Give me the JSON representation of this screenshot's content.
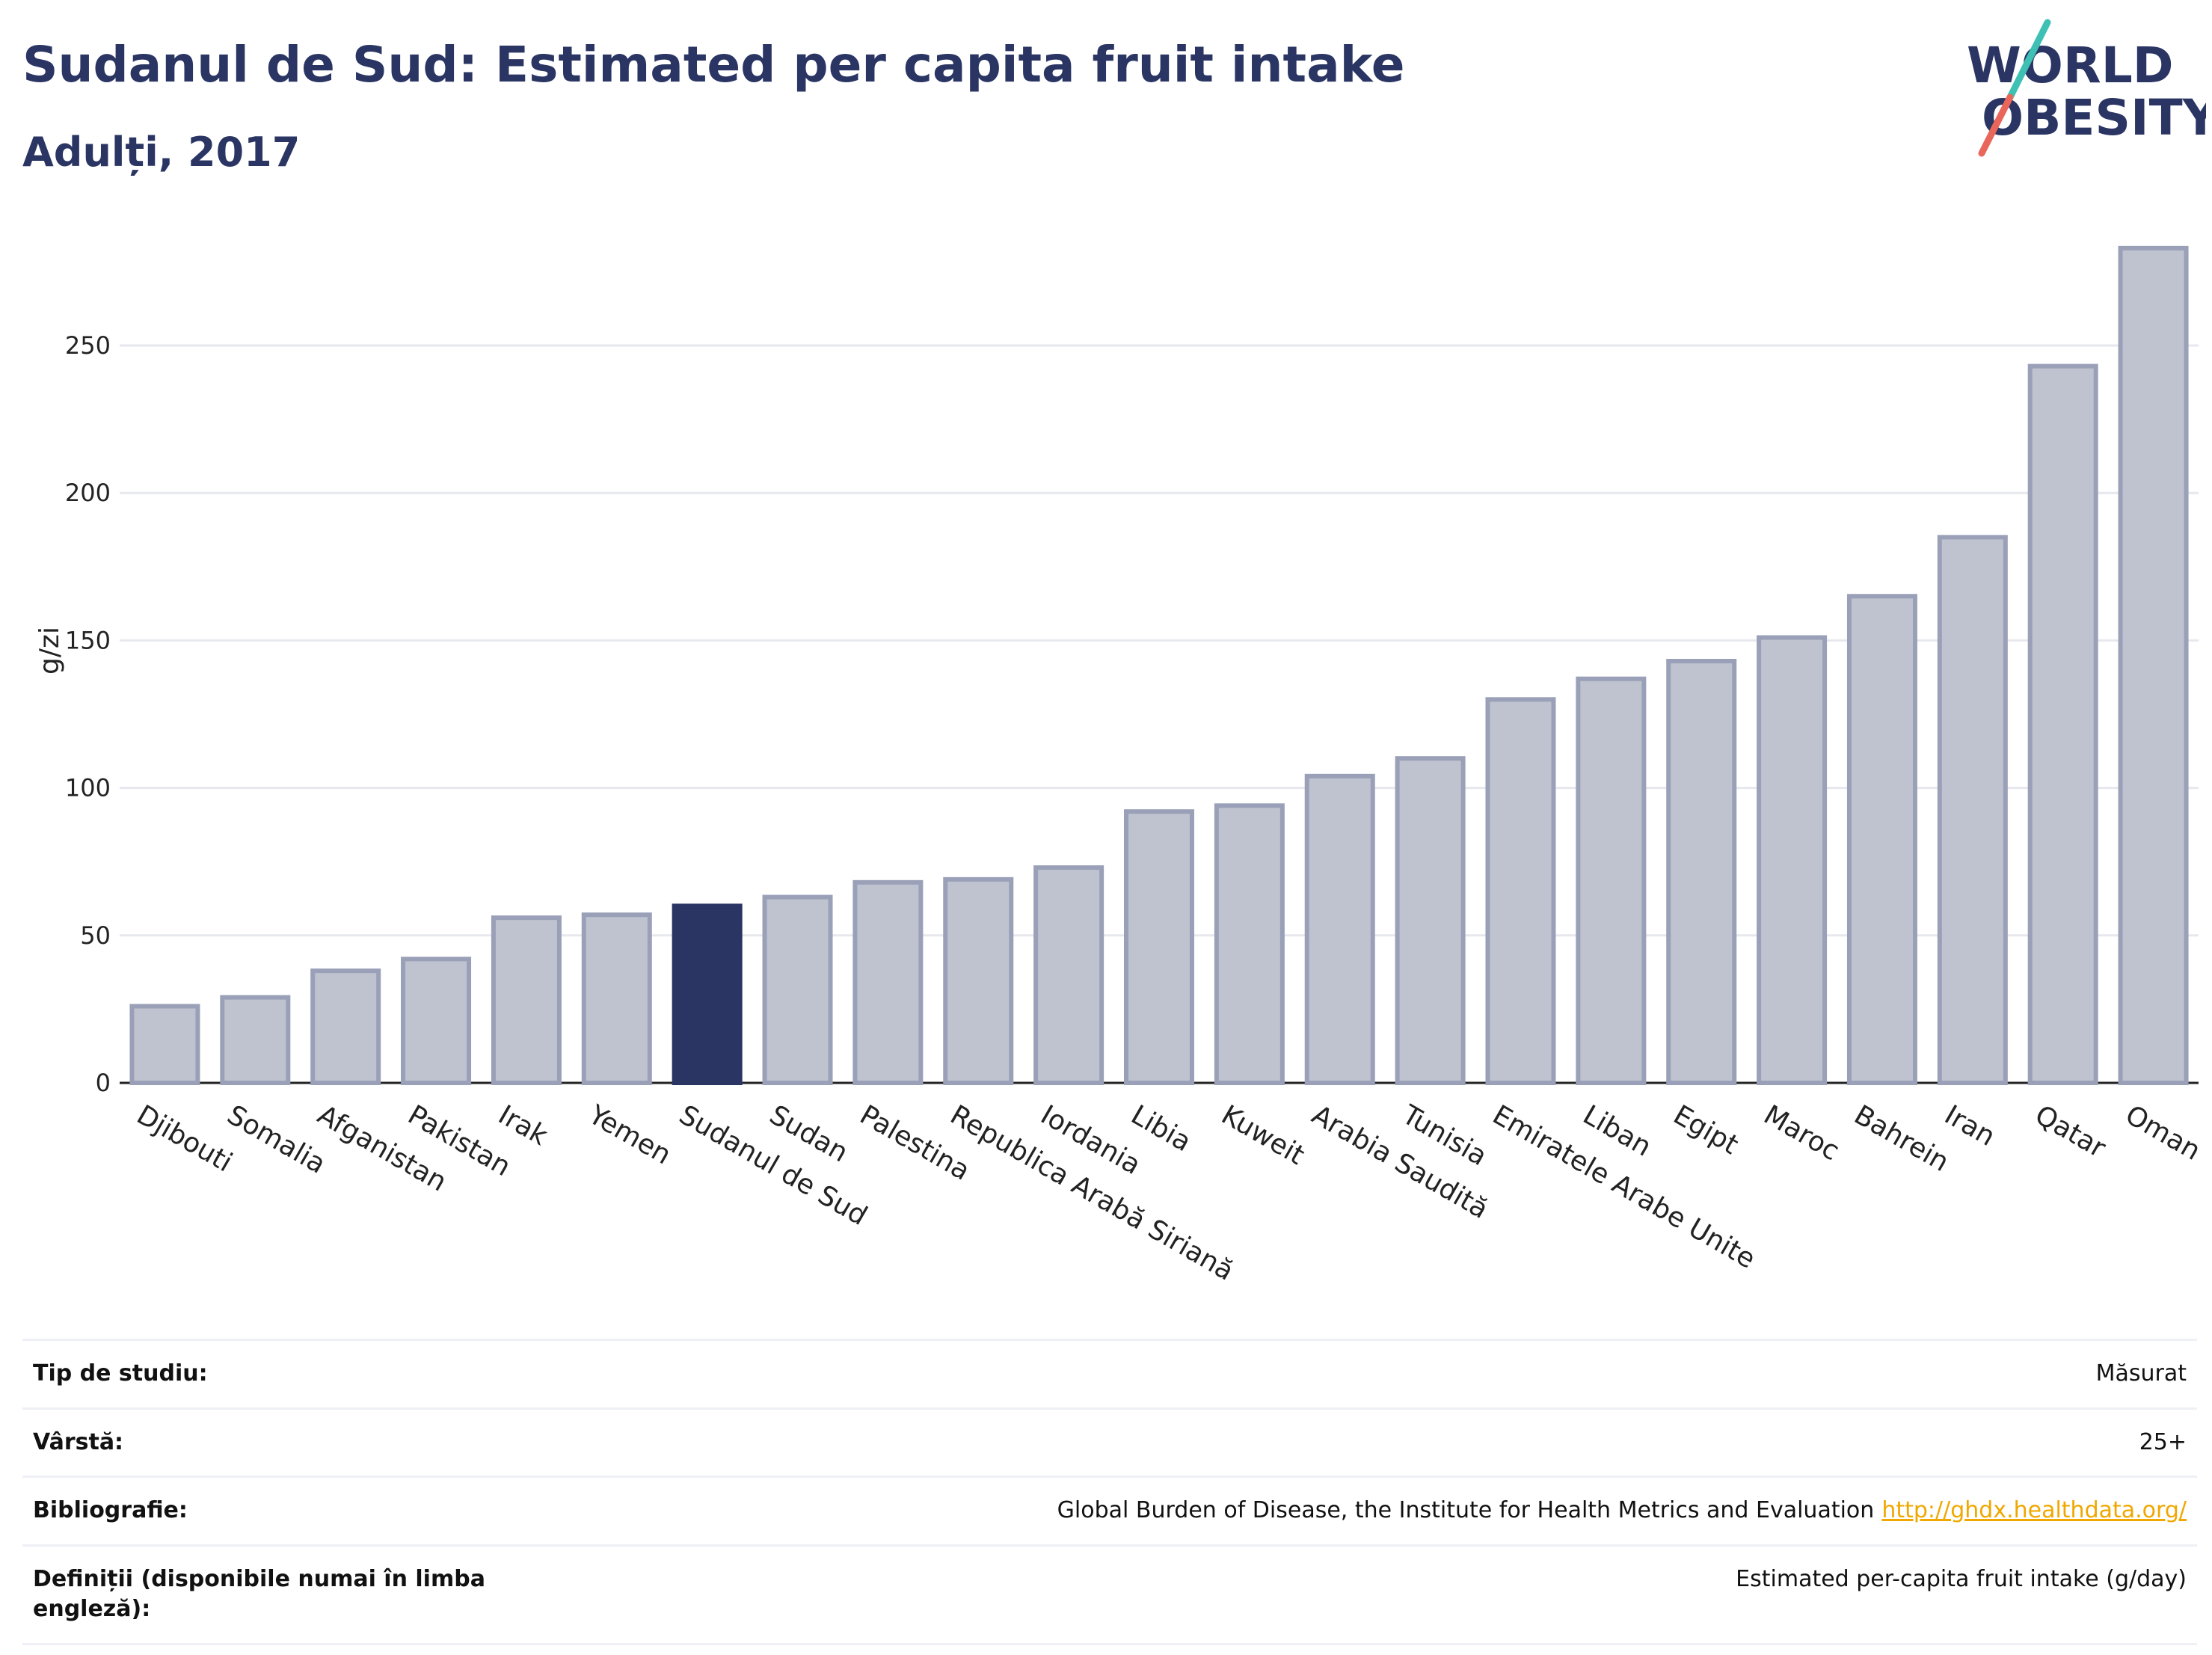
{
  "header": {
    "title": "Sudanul de Sud: Estimated per capita fruit intake",
    "subtitle": "Adulți, 2017"
  },
  "logo": {
    "line1": "WORLD",
    "line2": "OBESITY"
  },
  "colors": {
    "highlight": "#2a3563",
    "bar": "#bfc3cf",
    "bar_border": "#9aa0b8",
    "grid": "#e6e8ee",
    "link": "#f0a800"
  },
  "chart_data": {
    "type": "bar",
    "ylabel": "g/zi",
    "ylim": [
      0,
      290
    ],
    "yticks": [
      0,
      50,
      100,
      150,
      200,
      250
    ],
    "grid": true,
    "categories": [
      "Djibouti",
      "Somalia",
      "Afganistan",
      "Pakistan",
      "Irak",
      "Yemen",
      "Sudanul de Sud",
      "Sudan",
      "Palestina",
      "Republica Arabă Siriană",
      "Iordania",
      "Libia",
      "Kuweit",
      "Arabia Saudită",
      "Tunisia",
      "Emiratele Arabe Unite",
      "Liban",
      "Egipt",
      "Maroc",
      "Bahrein",
      "Iran",
      "Qatar",
      "Oman"
    ],
    "values": [
      26,
      29,
      38,
      42,
      56,
      57,
      60,
      63,
      68,
      69,
      73,
      92,
      94,
      104,
      110,
      130,
      137,
      143,
      151,
      165,
      185,
      243,
      283
    ],
    "highlight": "Sudanul de Sud"
  },
  "meta": {
    "rows": [
      {
        "label": "Tip de studiu:",
        "value": "Măsurat",
        "link": ""
      },
      {
        "label": "Vârstă:",
        "value": "25+",
        "link": ""
      },
      {
        "label": "Bibliografie:",
        "value": "Global Burden of Disease, the Institute for Health Metrics and Evaluation",
        "link": "http://ghdx.healthdata.org/"
      },
      {
        "label": "Definiții (disponibile numai în limba engleză):",
        "value": "Estimated per-capita fruit intake (g/day)",
        "link": ""
      }
    ]
  }
}
